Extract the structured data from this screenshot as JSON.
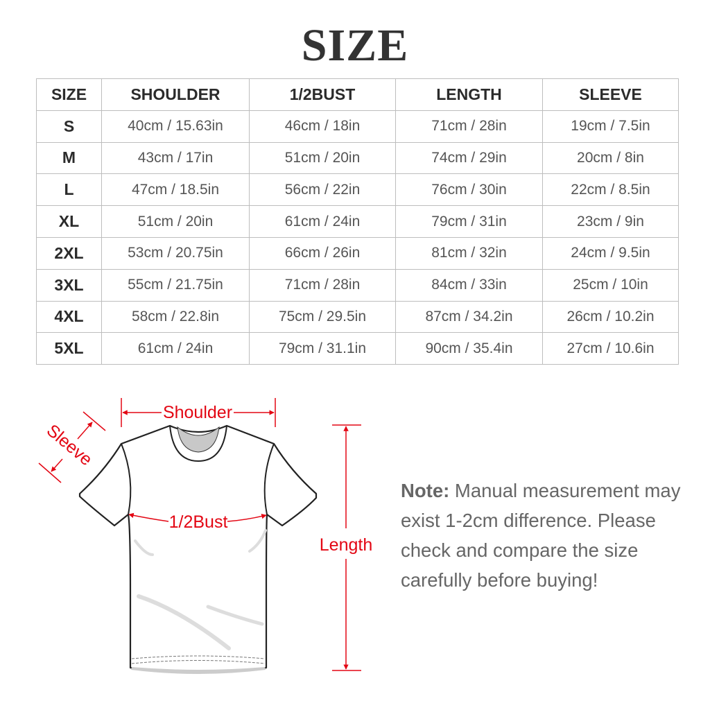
{
  "title": "SIZE",
  "table": {
    "headers": [
      "SIZE",
      "SHOULDER",
      "1/2BUST",
      "LENGTH",
      "SLEEVE"
    ],
    "rows": [
      [
        "S",
        "40cm / 15.63in",
        "46cm / 18in",
        "71cm / 28in",
        "19cm / 7.5in"
      ],
      [
        "M",
        "43cm / 17in",
        "51cm / 20in",
        "74cm / 29in",
        "20cm / 8in"
      ],
      [
        "L",
        "47cm / 18.5in",
        "56cm / 22in",
        "76cm / 30in",
        "22cm / 8.5in"
      ],
      [
        "XL",
        "51cm / 20in",
        "61cm / 24in",
        "79cm / 31in",
        "23cm / 9in"
      ],
      [
        "2XL",
        "53cm / 20.75in",
        "66cm / 26in",
        "81cm / 32in",
        "24cm / 9.5in"
      ],
      [
        "3XL",
        "55cm / 21.75in",
        "71cm / 28in",
        "84cm / 33in",
        "25cm / 10in"
      ],
      [
        "4XL",
        "58cm / 22.8in",
        "75cm / 29.5in",
        "87cm / 34.2in",
        "26cm / 10.2in"
      ],
      [
        "5XL",
        "61cm / 24in",
        "79cm / 31.1in",
        "90cm / 35.4in",
        "27cm / 10.6in"
      ]
    ]
  },
  "diagram": {
    "shoulder": "Shoulder",
    "sleeve": "Sleeve",
    "bust": "1/2Bust",
    "length": "Length",
    "accent_color": "#e30613"
  },
  "note": {
    "label": "Note:",
    "text": "Manual measurement may exist 1-2cm difference. Please check and compare the size carefully before buying!"
  }
}
